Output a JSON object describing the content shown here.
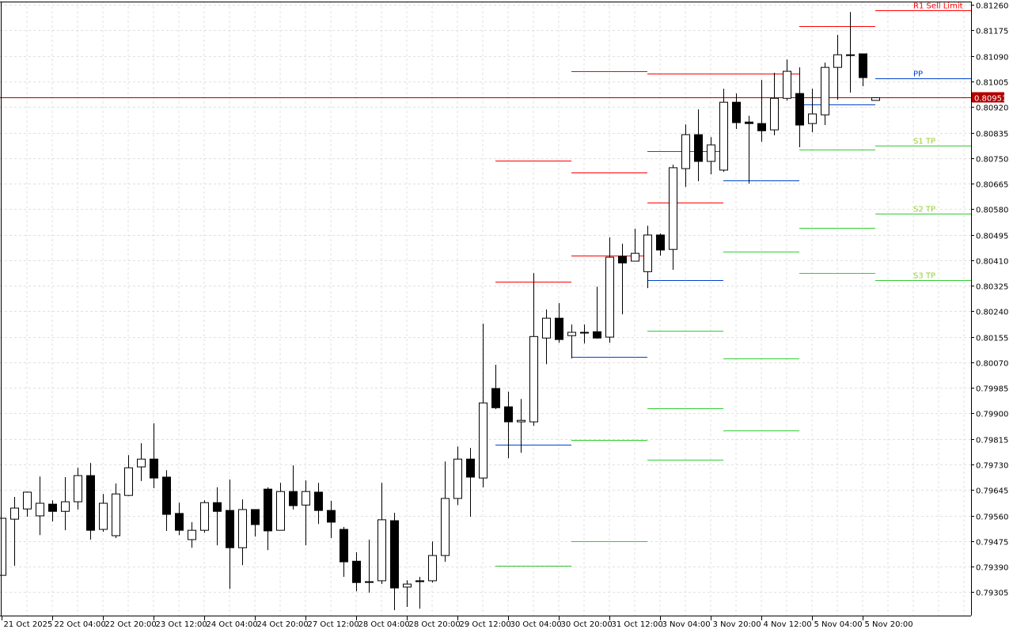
{
  "chart_data": {
    "type": "candlestick",
    "title": "",
    "xlabel": "",
    "ylabel": "",
    "ylim": [
      0.79227,
      0.81271
    ],
    "grid": true,
    "colors": {
      "bull_fill": "#ffffff",
      "bear_fill": "#000000",
      "outline": "#000000",
      "grid": "#e0e0e0",
      "resistance": "#ff0000",
      "pivot": "#0044cc",
      "support": "#33cc33",
      "support_label": "#99cc33",
      "current_price": "#b00000"
    },
    "x_tick_labels": [
      "21 Oct 2025",
      "22 Oct 04:00",
      "22 Oct 20:00",
      "23 Oct 12:00",
      "24 Oct 04:00",
      "24 Oct 20:00",
      "27 Oct 12:00",
      "28 Oct 04:00",
      "28 Oct 20:00",
      "29 Oct 12:00",
      "30 Oct 04:00",
      "30 Oct 20:00",
      "31 Oct 12:00",
      "3 Nov 04:00",
      "3 Nov 20:00",
      "4 Nov 12:00",
      "5 Nov 04:00",
      "5 Nov 20:00"
    ],
    "x_tick_every_n_candles": 4,
    "y_tick_labels": [
      "0.81260",
      "0.81175",
      "0.81090",
      "0.81005",
      "0.80920",
      "0.80835",
      "0.80750",
      "0.80665",
      "0.80580",
      "0.80495",
      "0.80410",
      "0.80325",
      "0.80240",
      "0.80155",
      "0.80070",
      "0.79985",
      "0.79900",
      "0.79815",
      "0.79730",
      "0.79645",
      "0.79560",
      "0.79475",
      "0.79390",
      "0.79305"
    ],
    "current_price": "0.80951",
    "candles_ohlc": [
      [
        0.79361,
        0.79551,
        0.79361,
        0.79551
      ],
      [
        0.79548,
        0.79622,
        0.79393,
        0.79585
      ],
      [
        0.79582,
        0.7964,
        0.79556,
        0.79638
      ],
      [
        0.79559,
        0.7969,
        0.79495,
        0.79601
      ],
      [
        0.79598,
        0.79611,
        0.7954,
        0.79574
      ],
      [
        0.79574,
        0.79688,
        0.79511,
        0.79606
      ],
      [
        0.79606,
        0.79719,
        0.7958,
        0.79693
      ],
      [
        0.79693,
        0.79735,
        0.7948,
        0.79511
      ],
      [
        0.79514,
        0.79632,
        0.79506,
        0.79601
      ],
      [
        0.79493,
        0.79667,
        0.79485,
        0.79632
      ],
      [
        0.79627,
        0.79761,
        0.79625,
        0.79719
      ],
      [
        0.79722,
        0.79801,
        0.79675,
        0.79748
      ],
      [
        0.79748,
        0.79867,
        0.79651,
        0.79685
      ],
      [
        0.79688,
        0.79711,
        0.79509,
        0.79564
      ],
      [
        0.79567,
        0.79603,
        0.79495,
        0.79511
      ],
      [
        0.7948,
        0.79538,
        0.79453,
        0.79511
      ],
      [
        0.79511,
        0.79611,
        0.79503,
        0.79603
      ],
      [
        0.79603,
        0.79654,
        0.79461,
        0.79574
      ],
      [
        0.79577,
        0.7968,
        0.79316,
        0.79453
      ],
      [
        0.79453,
        0.79614,
        0.79395,
        0.7958
      ],
      [
        0.7958,
        0.7958,
        0.7949,
        0.7953
      ],
      [
        0.79648,
        0.79654,
        0.79445,
        0.79509
      ],
      [
        0.79511,
        0.79669,
        0.79511,
        0.7964
      ],
      [
        0.7964,
        0.79727,
        0.7958,
        0.79593
      ],
      [
        0.79595,
        0.79677,
        0.79461,
        0.7964
      ],
      [
        0.79638,
        0.79669,
        0.79532,
        0.79577
      ],
      [
        0.79577,
        0.79609,
        0.79485,
        0.79538
      ],
      [
        0.79514,
        0.79522,
        0.79356,
        0.79406
      ],
      [
        0.79408,
        0.79438,
        0.79308,
        0.79337
      ],
      [
        0.7934,
        0.7948,
        0.79303,
        0.7934
      ],
      [
        0.79343,
        0.79669,
        0.79332,
        0.79546
      ],
      [
        0.79543,
        0.79569,
        0.79245,
        0.79319
      ],
      [
        0.79322,
        0.79345,
        0.79256,
        0.79332
      ],
      [
        0.79343,
        0.79356,
        0.7925,
        0.7934
      ],
      [
        0.79343,
        0.79474,
        0.79337,
        0.79427
      ],
      [
        0.79427,
        0.7974,
        0.79406,
        0.79617
      ],
      [
        0.79617,
        0.7979,
        0.79595,
        0.79748
      ],
      [
        0.79748,
        0.79785,
        0.79556,
        0.79688
      ],
      [
        0.79685,
        0.80199,
        0.79654,
        0.79935
      ],
      [
        0.79983,
        0.80062,
        0.79914,
        0.79919
      ],
      [
        0.79922,
        0.79972,
        0.79751,
        0.79872
      ],
      [
        0.79872,
        0.79948,
        0.79769,
        0.79877
      ],
      [
        0.79872,
        0.80367,
        0.79859,
        0.80156
      ],
      [
        0.80151,
        0.80246,
        0.80064,
        0.80217
      ],
      [
        0.80217,
        0.80267,
        0.80135,
        0.80146
      ],
      [
        0.80159,
        0.80196,
        0.80083,
        0.8017
      ],
      [
        0.8017,
        0.80196,
        0.80133,
        0.8017
      ],
      [
        0.80172,
        0.80322,
        0.80149,
        0.80151
      ],
      [
        0.80154,
        0.80486,
        0.80135,
        0.8042
      ],
      [
        0.80423,
        0.80465,
        0.8023,
        0.80401
      ],
      [
        0.80407,
        0.80515,
        0.80407,
        0.80433
      ],
      [
        0.80372,
        0.80525,
        0.80317,
        0.80494
      ],
      [
        0.80494,
        0.80499,
        0.80425,
        0.80444
      ],
      [
        0.80446,
        0.80728,
        0.80378,
        0.80718
      ],
      [
        0.80715,
        0.80862,
        0.80654,
        0.80828
      ],
      [
        0.80828,
        0.80912,
        0.80673,
        0.80739
      ],
      [
        0.80739,
        0.8082,
        0.80696,
        0.80794
      ],
      [
        0.8071,
        0.80981,
        0.80704,
        0.80936
      ],
      [
        0.80936,
        0.80965,
        0.80847,
        0.80868
      ],
      [
        0.8087,
        0.80891,
        0.80665,
        0.80865
      ],
      [
        0.80865,
        0.8101,
        0.80804,
        0.80841
      ],
      [
        0.80844,
        0.81034,
        0.80826,
        0.80949
      ],
      [
        0.80949,
        0.81078,
        0.80941,
        0.81039
      ],
      [
        0.80965,
        0.81052,
        0.80786,
        0.8086
      ],
      [
        0.80865,
        0.80981,
        0.80836,
        0.80897
      ],
      [
        0.80894,
        0.81068,
        0.8086,
        0.81052
      ],
      [
        0.81052,
        0.8116,
        0.80944,
        0.81094
      ],
      [
        0.81094,
        0.81236,
        0.80968,
        0.81094
      ],
      [
        0.81097,
        0.81097,
        0.80989,
        0.81018
      ],
      [
        0.80942,
        0.80951,
        0.80942,
        0.80951
      ]
    ],
    "level_segments": [
      {
        "from": 39,
        "to": 45,
        "levels": [
          {
            "price": 0.80741,
            "kind": "resistance"
          },
          {
            "price": 0.80338,
            "kind": "resistance"
          },
          {
            "price": 0.79796,
            "kind": "pivot"
          },
          {
            "price": 0.79393,
            "kind": "support"
          }
        ]
      },
      {
        "from": 45,
        "to": 51,
        "levels": [
          {
            "price": 0.81039,
            "kind": "resistance"
          },
          {
            "price": 0.80702,
            "kind": "resistance"
          },
          {
            "price": 0.80425,
            "kind": "resistance"
          },
          {
            "price": 0.80088,
            "kind": "pivot"
          },
          {
            "price": 0.79812,
            "kind": "support"
          },
          {
            "price": 0.79474,
            "kind": "support"
          }
        ]
      },
      {
        "from": 51,
        "to": 57,
        "levels": [
          {
            "price": 0.81031,
            "kind": "resistance"
          },
          {
            "price": 0.80773,
            "kind": "resistance"
          },
          {
            "price": 0.80602,
            "kind": "resistance"
          },
          {
            "price": 0.80344,
            "kind": "pivot"
          },
          {
            "price": 0.80175,
            "kind": "support"
          },
          {
            "price": 0.79917,
            "kind": "support"
          },
          {
            "price": 0.79746,
            "kind": "support"
          }
        ]
      },
      {
        "from": 57,
        "to": 63,
        "levels": [
          {
            "price": 0.81031,
            "kind": "resistance"
          },
          {
            "price": 0.80675,
            "kind": "pivot"
          },
          {
            "price": 0.80438,
            "kind": "support"
          },
          {
            "price": 0.80083,
            "kind": "support"
          },
          {
            "price": 0.79843,
            "kind": "support"
          }
        ]
      },
      {
        "from": 63,
        "to": 69,
        "levels": [
          {
            "price": 0.81189,
            "kind": "resistance"
          },
          {
            "price": 0.80928,
            "kind": "pivot"
          },
          {
            "price": 0.80778,
            "kind": "support"
          },
          {
            "price": 0.80517,
            "kind": "support"
          },
          {
            "price": 0.80367,
            "kind": "support"
          }
        ]
      },
      {
        "from": 69,
        "to": null,
        "levels": [
          {
            "price": 0.81242,
            "kind": "resistance",
            "label": "R1 Sell Limit"
          },
          {
            "price": 0.81015,
            "kind": "pivot",
            "label": "PP"
          },
          {
            "price": 0.80791,
            "kind": "support",
            "label": "S1 TP"
          },
          {
            "price": 0.80565,
            "kind": "support",
            "label": "S2 TP"
          },
          {
            "price": 0.80344,
            "kind": "support",
            "label": "S3 TP"
          }
        ]
      }
    ]
  }
}
